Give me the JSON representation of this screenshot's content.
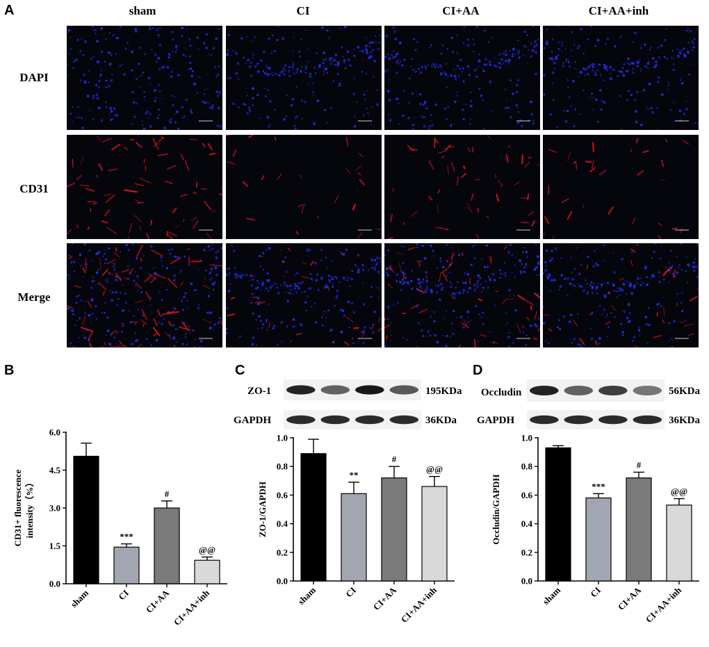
{
  "panel_a": {
    "letter": "A",
    "columns": [
      "sham",
      "CI",
      "CI+AA",
      "CI+AA+inh"
    ],
    "rows": [
      "DAPI",
      "CD31",
      "Merge"
    ]
  },
  "panel_c_blot": {
    "letter": "C",
    "rows": [
      {
        "protein": "ZO-1",
        "size": "195KDa",
        "intensities": [
          0.9,
          0.55,
          0.95,
          0.6
        ]
      },
      {
        "protein": "GAPDH",
        "size": "36KDa",
        "intensities": [
          0.85,
          0.85,
          0.85,
          0.85
        ]
      }
    ]
  },
  "panel_d_blot": {
    "letter": "D",
    "rows": [
      {
        "protein": "Occludin",
        "size": "56KDa",
        "intensities": [
          0.9,
          0.55,
          0.75,
          0.45
        ]
      },
      {
        "protein": "GAPDH",
        "size": "36KDa",
        "intensities": [
          0.85,
          0.85,
          0.85,
          0.85
        ]
      }
    ]
  },
  "colors": {
    "bar_colors": [
      "#000000",
      "#a2a6b2",
      "#7a7a7a",
      "#d9d9d9"
    ],
    "dapi": "#1f2fe0",
    "cd31": "#e0141c"
  },
  "chart_data": [
    {
      "type": "bar",
      "panel": "B",
      "categories": [
        "sham",
        "CI",
        "CI+AA",
        "CI+AA+inh"
      ],
      "values": [
        5.05,
        1.45,
        3.0,
        0.93
      ],
      "errors": [
        0.52,
        0.13,
        0.28,
        0.13
      ],
      "annotations": [
        "",
        "***",
        "#",
        "@@"
      ],
      "ylabel": "CD31+ fluorescence intensity（%）",
      "ylim": [
        0,
        6.0
      ],
      "yticks": [
        "0.0",
        "1.5",
        "3.0",
        "4.5",
        "6.0"
      ],
      "grid": false
    },
    {
      "type": "bar",
      "panel": "C",
      "categories": [
        "sham",
        "CI",
        "CI+AA",
        "CI+AA+inh"
      ],
      "values": [
        0.89,
        0.61,
        0.72,
        0.66
      ],
      "errors": [
        0.1,
        0.08,
        0.08,
        0.07
      ],
      "annotations": [
        "",
        "**",
        "#",
        "@@"
      ],
      "ylabel": "ZO-1/GAPDH",
      "ylim": [
        0,
        1.0
      ],
      "yticks": [
        "0.0",
        "0.2",
        "0.4",
        "0.6",
        "0.8",
        "1.0"
      ],
      "grid": false
    },
    {
      "type": "bar",
      "panel": "D",
      "categories": [
        "sham",
        "CI",
        "CI+AA",
        "CI+AA+inh"
      ],
      "values": [
        0.93,
        0.58,
        0.72,
        0.53
      ],
      "errors": [
        0.015,
        0.03,
        0.04,
        0.045
      ],
      "annotations": [
        "",
        "***",
        "#",
        "@@"
      ],
      "ylabel": "Occludin/GAPDH",
      "ylim": [
        0,
        1.0
      ],
      "yticks": [
        "0.0",
        "0.2",
        "0.4",
        "0.6",
        "0.8",
        "1.0"
      ],
      "grid": false
    }
  ]
}
